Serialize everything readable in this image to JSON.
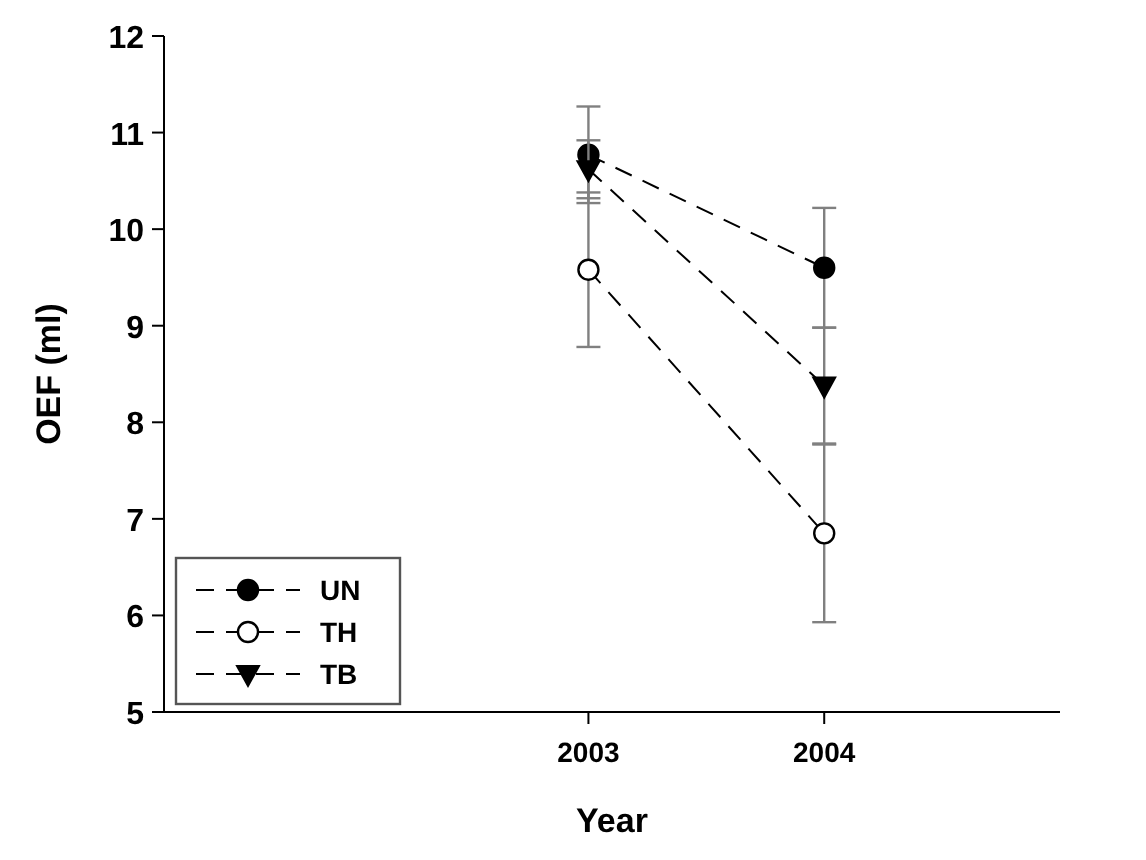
{
  "chart_data": {
    "type": "line",
    "xlabel": "Year",
    "ylabel": "OEF (ml)",
    "x": [
      2003,
      2004
    ],
    "xlim": [
      2001.2,
      2005
    ],
    "xticks": [
      2003,
      2004
    ],
    "ylim": [
      5,
      12
    ],
    "yticks": [
      5,
      6,
      7,
      8,
      9,
      10,
      11,
      12
    ],
    "grid": false,
    "legend": "bottom left",
    "line_style": "dashed",
    "series": [
      {
        "name": "UN",
        "color": "#000000",
        "marker": "circle",
        "values": [
          10.77,
          9.6
        ],
        "errors": [
          0.5,
          0.62
        ]
      },
      {
        "name": "TH",
        "color": "#ffffff",
        "marker": "circle",
        "values": [
          9.58,
          6.85
        ],
        "errors": [
          0.8,
          0.92
        ]
      },
      {
        "name": "TB",
        "color": "#000000",
        "marker": "triangle",
        "values": [
          10.62,
          8.38
        ],
        "errors": [
          0.3,
          0.6
        ]
      }
    ]
  }
}
